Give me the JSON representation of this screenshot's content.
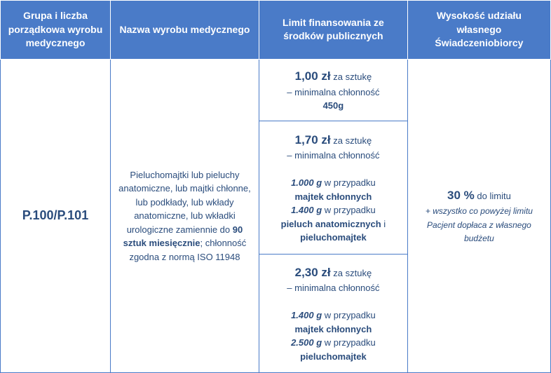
{
  "colors": {
    "header_bg": "#4a7bc8",
    "header_text": "#ffffff",
    "cell_text": "#2a4c7c",
    "border": "#4a7bc8"
  },
  "headers": {
    "col1": "Grupa i liczba porządkowa wyrobu medycznego",
    "col2": "Nazwa wyrobu medycznego",
    "col3": "Limit finansowania ze środków publicznych",
    "col4": "Wysokość udziału własnego Świadczeniobiorcy"
  },
  "row": {
    "code": "P.100/P.101",
    "description_pre": "Pieluchomajtki lub pieluchy anatomiczne, lub majtki chłonne, lub podkłady, lub wkłady anatomiczne, lub wkładki urologiczne zamiennie do ",
    "description_bold": "90 sztuk miesięcznie",
    "description_post": "; chłonność zgodna z normą ISO 11948",
    "limit1": {
      "price": "1,00 zł",
      "price_suffix": " za sztukę",
      "line2": "– minimalna chłonność",
      "line3_bold": "450g"
    },
    "limit2": {
      "price": "1,70 zł",
      "price_suffix": " za sztukę",
      "line2": "– minimalna chłonność",
      "det1_bold": "1.000 g",
      "det1_rest": " w przypadku",
      "det1_prod": "majtek chłonnych",
      "det2_bold": "1.400 g",
      "det2_rest": " w przypadku",
      "det2_prod1": "pieluch anatomicznych",
      "det2_and": " i",
      "det2_prod2": "pieluchomajtek"
    },
    "limit3": {
      "price": "2,30 zł",
      "price_suffix": " za sztukę",
      "line2": "– minimalna chłonność",
      "det1_bold": "1.400 g",
      "det1_rest": " w przypadku",
      "det1_prod": "majtek chłonnych",
      "det2_bold": "2.500 g",
      "det2_rest": " w przypadku",
      "det2_prod": "pieluchomajtek"
    },
    "share": {
      "bold": "30 %",
      "rest": " do limitu",
      "italic": "+ wszystko co powyżej limitu Pacjent dopłaca z własnego budżetu"
    }
  }
}
